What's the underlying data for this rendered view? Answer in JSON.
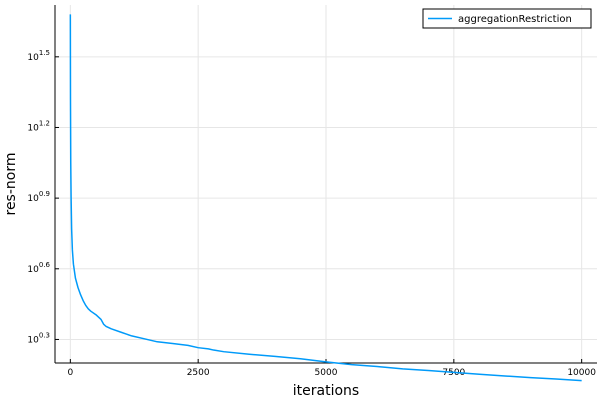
{
  "chart_data": {
    "type": "line",
    "title": "",
    "xlabel": "iterations",
    "ylabel": "res-norm",
    "xlim": [
      -300,
      10300
    ],
    "ylim_log10": [
      0.2,
      1.72
    ],
    "y_scale": "log10",
    "grid": true,
    "legend_position": "top-right",
    "x_ticks": [
      {
        "value": 0,
        "label": "0"
      },
      {
        "value": 2500,
        "label": "2500"
      },
      {
        "value": 5000,
        "label": "5000"
      },
      {
        "value": 7500,
        "label": "7500"
      },
      {
        "value": 10000,
        "label": "10000"
      }
    ],
    "y_ticks": [
      {
        "exp": 0.3,
        "base": "10",
        "sup": "0.3"
      },
      {
        "exp": 0.6,
        "base": "10",
        "sup": "0.6"
      },
      {
        "exp": 0.9,
        "base": "10",
        "sup": "0.9"
      },
      {
        "exp": 1.2,
        "base": "10",
        "sup": "1.2"
      },
      {
        "exp": 1.5,
        "base": "10",
        "sup": "1.5"
      }
    ],
    "series": [
      {
        "name": "aggregationRestriction",
        "color": "#009af9",
        "x": [
          0,
          3,
          8,
          15,
          25,
          40,
          60,
          100,
          150,
          200,
          250,
          300,
          350,
          400,
          500,
          600,
          650,
          700,
          800,
          1000,
          1200,
          1500,
          1700,
          2000,
          2300,
          2500,
          2700,
          2800,
          3000,
          3500,
          4000,
          4500,
          5000,
          5500,
          6000,
          6500,
          7000,
          7500,
          8000,
          8500,
          9000,
          9500,
          10000
        ],
        "y_log10": [
          1.68,
          1.32,
          1.05,
          0.9,
          0.77,
          0.68,
          0.62,
          0.56,
          0.52,
          0.49,
          0.465,
          0.445,
          0.43,
          0.42,
          0.405,
          0.385,
          0.365,
          0.355,
          0.345,
          0.33,
          0.315,
          0.3,
          0.29,
          0.283,
          0.275,
          0.265,
          0.26,
          0.255,
          0.248,
          0.237,
          0.228,
          0.218,
          0.205,
          0.193,
          0.185,
          0.175,
          0.168,
          0.16,
          0.152,
          0.145,
          0.138,
          0.132,
          0.125
        ]
      }
    ]
  }
}
